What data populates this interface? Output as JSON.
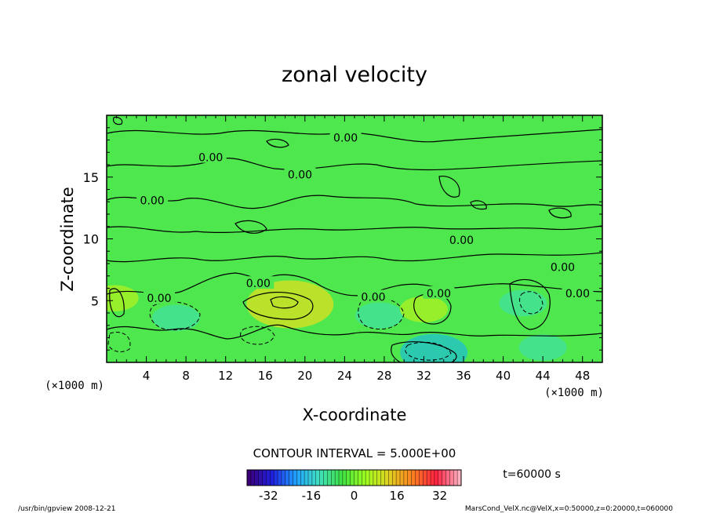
{
  "chart_data": {
    "type": "heatmap",
    "title": "zonal velocity",
    "xlabel": "X-coordinate",
    "ylabel": "Z-coordinate",
    "x_unit_left": "(×1000 m)",
    "x_unit_right": "(×1000 m)",
    "xlim": [
      0,
      50
    ],
    "ylim": [
      0,
      20
    ],
    "x_ticks": [
      4,
      8,
      12,
      16,
      20,
      24,
      28,
      32,
      36,
      40,
      44,
      48
    ],
    "y_ticks": [
      5,
      10,
      15
    ],
    "contour_interval_text": "CONTOUR INTERVAL = 5.000E+00",
    "time_text": "t=60000 s",
    "colorbar": {
      "ticks": [
        -32,
        -16,
        0,
        16,
        32
      ],
      "range": [
        -40,
        40
      ],
      "colors": [
        "#3a007a",
        "#2020e0",
        "#20a0ff",
        "#40e0c0",
        "#40e040",
        "#a0ff20",
        "#e0d020",
        "#ff8020",
        "#ff2040",
        "#ffb0c0"
      ]
    },
    "contour_labels": [
      {
        "text": "0.00",
        "x": 10.5,
        "z": 16.6
      },
      {
        "text": "0.00",
        "x": 19.5,
        "z": 15.2
      },
      {
        "text": "0.00",
        "x": 24.1,
        "z": 18.2
      },
      {
        "text": "0.00",
        "x": 4.6,
        "z": 13.1
      },
      {
        "text": "0.00",
        "x": 35.8,
        "z": 9.9
      },
      {
        "text": "0.00",
        "x": 46.0,
        "z": 7.7
      },
      {
        "text": "0.00",
        "x": 47.5,
        "z": 5.6
      },
      {
        "text": "0.00",
        "x": 15.3,
        "z": 6.4
      },
      {
        "text": "0.00",
        "x": 5.3,
        "z": 5.2
      },
      {
        "text": "0.00",
        "x": 26.9,
        "z": 5.3
      },
      {
        "text": "0.00",
        "x": 33.5,
        "z": 5.6
      }
    ],
    "features": [
      {
        "kind": "max",
        "x": 18.5,
        "z": 4.7,
        "value": 15,
        "color": "#e0e020"
      },
      {
        "kind": "min",
        "x": 7.0,
        "z": 3.6,
        "value": -5,
        "color": "#40e0a0"
      },
      {
        "kind": "min",
        "x": 27.5,
        "z": 3.8,
        "value": -5,
        "color": "#40e0a0"
      },
      {
        "kind": "min",
        "x": 33.0,
        "z": 0.8,
        "value": -10,
        "color": "#20c0d0"
      },
      {
        "kind": "min",
        "x": 42.0,
        "z": 4.8,
        "value": -5,
        "color": "#40e0a0"
      },
      {
        "kind": "max",
        "x": 0.8,
        "z": 5.2,
        "value": 5,
        "color": "#b0f020"
      },
      {
        "kind": "max",
        "x": 32.0,
        "z": 4.3,
        "value": 5,
        "color": "#b0f020"
      },
      {
        "kind": "min",
        "x": 44.0,
        "z": 1.2,
        "value": -5,
        "color": "#40e0a0"
      }
    ]
  },
  "footer": {
    "left": "/usr/bin/gpview   2008-12-21",
    "right": "MarsCond_VelX.nc@VelX,x=0:50000,z=0:20000,t=060000"
  }
}
